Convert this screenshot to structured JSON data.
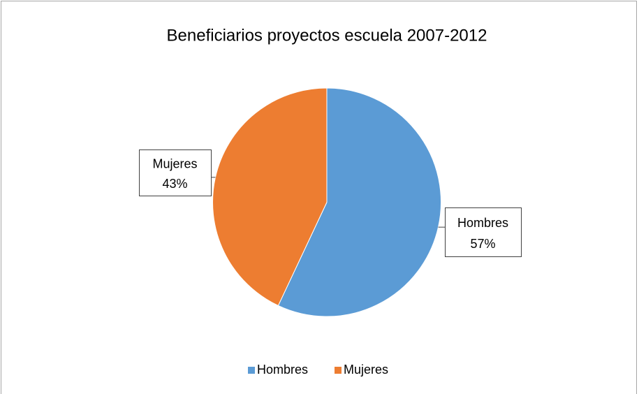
{
  "chart_data": {
    "type": "pie",
    "title": "Beneficiarios proyectos escuela 2007-2012",
    "categories": [
      "Hombres",
      "Mujeres"
    ],
    "values": [
      57,
      43
    ],
    "value_labels": [
      "57%",
      "43%"
    ],
    "colors": [
      "#5b9bd5",
      "#ed7d31"
    ],
    "legend": "bottom"
  }
}
